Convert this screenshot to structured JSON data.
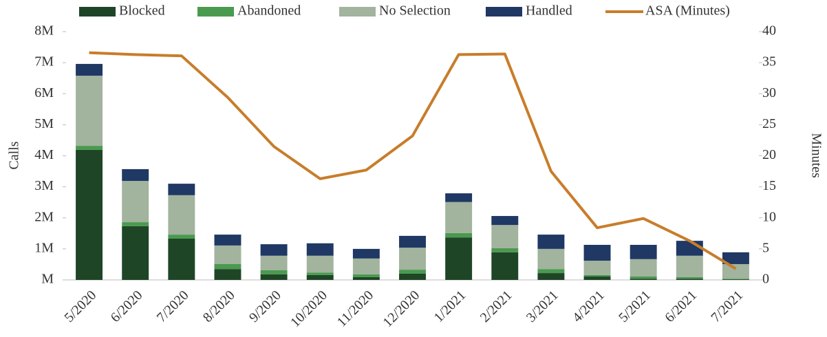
{
  "chart_data": {
    "type": "bar",
    "stacked": true,
    "categories": [
      "5/2020",
      "6/2020",
      "7/2020",
      "8/2020",
      "9/2020",
      "10/2020",
      "11/2020",
      "12/2020",
      "1/2021",
      "2/2021",
      "3/2021",
      "4/2021",
      "5/2021",
      "6/2021",
      "7/2021"
    ],
    "y_label": "Calls",
    "y2_label": "Minutes",
    "ylim": [
      0,
      8000000
    ],
    "yticks": [
      {
        "value": 0,
        "label": "M"
      },
      {
        "value": 1000000,
        "label": "1M"
      },
      {
        "value": 2000000,
        "label": "2M"
      },
      {
        "value": 3000000,
        "label": "3M"
      },
      {
        "value": 4000000,
        "label": "4M"
      },
      {
        "value": 5000000,
        "label": "5M"
      },
      {
        "value": 6000000,
        "label": "6M"
      },
      {
        "value": 7000000,
        "label": "7M"
      },
      {
        "value": 8000000,
        "label": "8M"
      }
    ],
    "y2lim": [
      0,
      40
    ],
    "y2ticks": [
      0,
      5,
      10,
      15,
      20,
      25,
      30,
      35,
      40
    ],
    "legend": "top",
    "series": [
      {
        "name": "Blocked",
        "color": "#1f4527",
        "values": [
          4190000,
          1730000,
          1330000,
          350000,
          180000,
          160000,
          90000,
          200000,
          1370000,
          890000,
          220000,
          110000,
          40000,
          40000,
          20000
        ]
      },
      {
        "name": "Abandoned",
        "color": "#4a9a4f",
        "values": [
          130000,
          130000,
          130000,
          160000,
          130000,
          80000,
          90000,
          130000,
          140000,
          130000,
          130000,
          50000,
          70000,
          50000,
          20000
        ]
      },
      {
        "name": "No Selection",
        "color": "#a2b39e",
        "values": [
          2260000,
          1330000,
          1270000,
          600000,
          470000,
          540000,
          510000,
          710000,
          1000000,
          750000,
          650000,
          460000,
          560000,
          690000,
          470000
        ]
      },
      {
        "name": "Handled",
        "color": "#1f3864",
        "values": [
          380000,
          380000,
          370000,
          350000,
          370000,
          400000,
          310000,
          380000,
          280000,
          290000,
          460000,
          510000,
          460000,
          480000,
          380000
        ]
      },
      {
        "name": "ASA (Minutes)",
        "color": "#c87d2a",
        "type": "line",
        "axis": "y2",
        "values": [
          36.6,
          36.3,
          36.1,
          29.4,
          21.5,
          16.3,
          17.7,
          23.2,
          36.3,
          36.4,
          17.5,
          8.4,
          9.9,
          6.3,
          1.8
        ]
      }
    ]
  }
}
